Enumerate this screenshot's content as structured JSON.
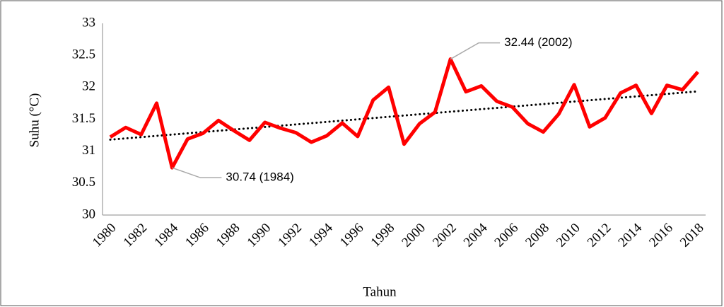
{
  "chart_data": {
    "type": "line",
    "x_label": "Tahun",
    "y_label": "Suhu (°C)",
    "x": [
      1980,
      1981,
      1982,
      1983,
      1984,
      1985,
      1986,
      1987,
      1988,
      1989,
      1990,
      1991,
      1992,
      1993,
      1994,
      1995,
      1996,
      1997,
      1998,
      1999,
      2000,
      2001,
      2002,
      2003,
      2004,
      2005,
      2006,
      2007,
      2008,
      2009,
      2010,
      2011,
      2012,
      2013,
      2014,
      2015,
      2016,
      2017,
      2018
    ],
    "series": [
      {
        "color": "#ff0000",
        "values": [
          31.22,
          31.37,
          31.26,
          31.75,
          30.74,
          31.19,
          31.28,
          31.48,
          31.32,
          31.17,
          31.45,
          31.36,
          31.29,
          31.14,
          31.24,
          31.44,
          31.23,
          31.8,
          32.0,
          31.11,
          31.43,
          31.61,
          32.44,
          31.93,
          32.02,
          31.78,
          31.69,
          31.43,
          31.3,
          31.58,
          32.04,
          31.38,
          31.52,
          31.91,
          32.03,
          31.59,
          32.03,
          31.96,
          32.24
        ]
      }
    ],
    "trendline": {
      "color": "#000000",
      "style": "dotted"
    },
    "annotations": [
      {
        "text": "32.44 (2002)",
        "x": 2002,
        "y": 32.44
      },
      {
        "text": "30.74 (1984)",
        "x": 1984,
        "y": 30.74
      }
    ],
    "xlim": [
      1980,
      2018
    ],
    "xticks": [
      1980,
      1982,
      1984,
      1986,
      1988,
      1990,
      1992,
      1994,
      1996,
      1998,
      2000,
      2002,
      2004,
      2006,
      2008,
      2010,
      2012,
      2014,
      2016,
      2018
    ],
    "ylim": [
      30,
      33
    ],
    "yticks": [
      30,
      30.5,
      31,
      31.5,
      32,
      32.5,
      33
    ],
    "grid": false
  }
}
